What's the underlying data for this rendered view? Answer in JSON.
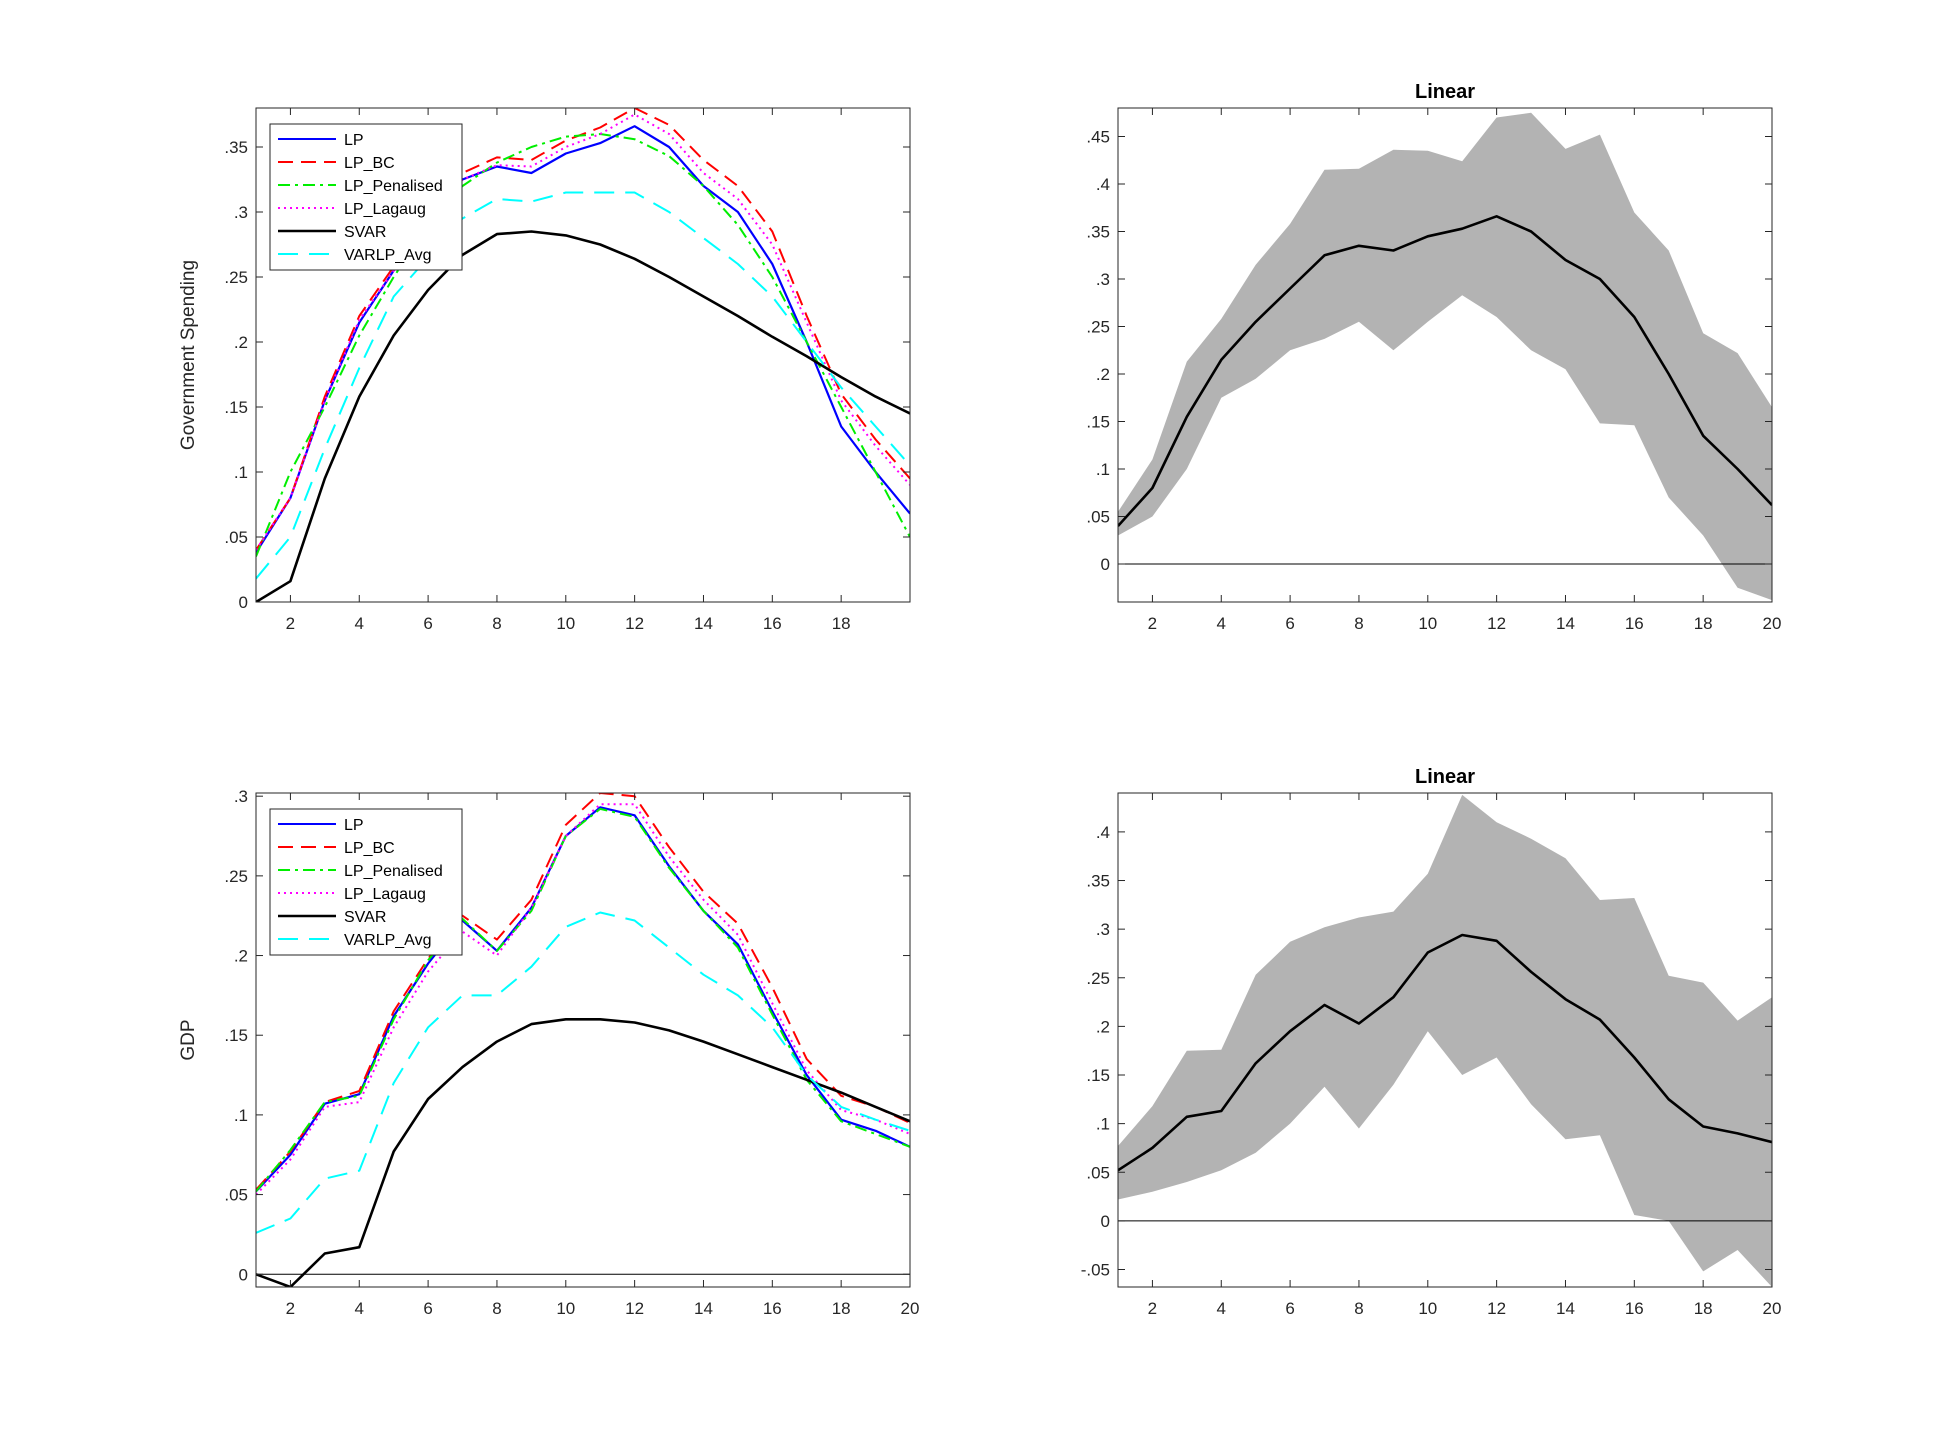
{
  "chart_data": [
    {
      "type": "line",
      "title": "",
      "xlabel": "",
      "ylabel": "Government Spending",
      "xlim": [
        1,
        20
      ],
      "ylim": [
        0,
        0.38
      ],
      "xticks": [
        2,
        4,
        6,
        8,
        10,
        12,
        14,
        16,
        18
      ],
      "yticks": [
        0,
        0.05,
        0.1,
        0.15,
        0.2,
        0.25,
        0.3,
        0.35
      ],
      "grid": false,
      "legend": "top-left",
      "x": [
        1,
        2,
        3,
        4,
        5,
        6,
        7,
        8,
        9,
        10,
        11,
        12,
        13,
        14,
        15,
        16,
        17,
        18,
        19,
        20
      ],
      "series": [
        {
          "name": "LP",
          "color": "#0000ff",
          "dash": "solid",
          "values": [
            0.038,
            0.08,
            0.155,
            0.215,
            0.255,
            0.29,
            0.325,
            0.335,
            0.33,
            0.345,
            0.353,
            0.366,
            0.35,
            0.32,
            0.3,
            0.26,
            0.2,
            0.135,
            0.1,
            0.068
          ]
        },
        {
          "name": "LP_BC",
          "color": "#ff0000",
          "dash": "dashed",
          "values": [
            0.04,
            0.08,
            0.158,
            0.22,
            0.258,
            0.297,
            0.33,
            0.342,
            0.34,
            0.355,
            0.365,
            0.38,
            0.367,
            0.34,
            0.32,
            0.285,
            0.22,
            0.16,
            0.125,
            0.095
          ]
        },
        {
          "name": "LP_Penalised",
          "color": "#00ee00",
          "dash": "dashdot",
          "values": [
            0.035,
            0.1,
            0.15,
            0.205,
            0.25,
            0.29,
            0.32,
            0.338,
            0.35,
            0.358,
            0.36,
            0.356,
            0.343,
            0.32,
            0.29,
            0.25,
            0.2,
            0.15,
            0.1,
            0.05
          ]
        },
        {
          "name": "LP_Lagaug",
          "color": "#ff00ff",
          "dash": "dotted",
          "values": [
            0.04,
            0.08,
            0.155,
            0.217,
            0.255,
            0.295,
            0.325,
            0.336,
            0.335,
            0.35,
            0.36,
            0.375,
            0.36,
            0.33,
            0.31,
            0.275,
            0.215,
            0.155,
            0.12,
            0.09
          ]
        },
        {
          "name": "SVAR",
          "color": "#000000",
          "dash": "solid",
          "values": [
            0,
            0.016,
            0.095,
            0.158,
            0.205,
            0.24,
            0.267,
            0.283,
            0.285,
            0.282,
            0.275,
            0.264,
            0.25,
            0.235,
            0.22,
            0.204,
            0.189,
            0.173,
            0.158,
            0.145
          ]
        },
        {
          "name": "VARLP_Avg",
          "color": "#00ffff",
          "dash": "longdash",
          "values": [
            0.018,
            0.05,
            0.118,
            0.18,
            0.235,
            0.265,
            0.295,
            0.31,
            0.308,
            0.315,
            0.315,
            0.315,
            0.3,
            0.28,
            0.26,
            0.235,
            0.2,
            0.165,
            0.135,
            0.105
          ]
        }
      ]
    },
    {
      "type": "area",
      "title": "Linear",
      "xlabel": "",
      "ylabel": "",
      "xlim": [
        1,
        20
      ],
      "ylim": [
        -0.04,
        0.48
      ],
      "xticks": [
        2,
        4,
        6,
        8,
        10,
        12,
        14,
        16,
        18,
        20
      ],
      "yticks": [
        0,
        0.05,
        0.1,
        0.15,
        0.2,
        0.25,
        0.3,
        0.35,
        0.4,
        0.45
      ],
      "grid": false,
      "zero_line": true,
      "band_color": "#b3b3b3",
      "line_color": "#000000",
      "x": [
        1,
        2,
        3,
        4,
        5,
        6,
        7,
        8,
        9,
        10,
        11,
        12,
        13,
        14,
        15,
        16,
        17,
        18,
        19,
        20
      ],
      "estimate": [
        0.04,
        0.08,
        0.155,
        0.215,
        0.255,
        0.29,
        0.325,
        0.335,
        0.33,
        0.345,
        0.353,
        0.366,
        0.35,
        0.32,
        0.3,
        0.26,
        0.2,
        0.135,
        0.1,
        0.062
      ],
      "upper": [
        0.055,
        0.11,
        0.213,
        0.258,
        0.315,
        0.358,
        0.415,
        0.416,
        0.436,
        0.435,
        0.424,
        0.47,
        0.475,
        0.437,
        0.452,
        0.37,
        0.33,
        0.243,
        0.222,
        0.165
      ],
      "lower": [
        0.03,
        0.05,
        0.1,
        0.175,
        0.195,
        0.225,
        0.237,
        0.255,
        0.225,
        0.255,
        0.283,
        0.26,
        0.225,
        0.205,
        0.148,
        0.146,
        0.07,
        0.03,
        -0.025,
        -0.038
      ]
    },
    {
      "type": "line",
      "title": "",
      "xlabel": "",
      "ylabel": "GDP",
      "xlim": [
        1,
        20
      ],
      "ylim": [
        -0.008,
        0.302
      ],
      "xticks": [
        2,
        4,
        6,
        8,
        10,
        12,
        14,
        16,
        18,
        20
      ],
      "yticks": [
        0,
        0.05,
        0.1,
        0.15,
        0.2,
        0.25,
        0.3
      ],
      "grid": false,
      "zero_line": true,
      "legend": "top-left",
      "x": [
        1,
        2,
        3,
        4,
        5,
        6,
        7,
        8,
        9,
        10,
        11,
        12,
        13,
        14,
        15,
        16,
        17,
        18,
        19,
        20
      ],
      "series": [
        {
          "name": "LP",
          "color": "#0000ff",
          "dash": "solid",
          "values": [
            0.052,
            0.075,
            0.107,
            0.113,
            0.162,
            0.195,
            0.222,
            0.203,
            0.23,
            0.275,
            0.293,
            0.288,
            0.256,
            0.228,
            0.207,
            0.165,
            0.125,
            0.097,
            0.09,
            0.08
          ]
        },
        {
          "name": "LP_BC",
          "color": "#ff0000",
          "dash": "dashed",
          "values": [
            0.053,
            0.077,
            0.108,
            0.115,
            0.165,
            0.198,
            0.225,
            0.21,
            0.235,
            0.282,
            0.302,
            0.3,
            0.268,
            0.24,
            0.22,
            0.18,
            0.135,
            0.112,
            0.105,
            0.095
          ]
        },
        {
          "name": "LP_Penalised",
          "color": "#00ee00",
          "dash": "dashdot",
          "values": [
            0.052,
            0.078,
            0.108,
            0.112,
            0.16,
            0.197,
            0.223,
            0.203,
            0.228,
            0.275,
            0.292,
            0.287,
            0.255,
            0.228,
            0.205,
            0.163,
            0.122,
            0.096,
            0.088,
            0.08
          ]
        },
        {
          "name": "LP_Lagaug",
          "color": "#ff00ff",
          "dash": "dotted",
          "values": [
            0.05,
            0.072,
            0.105,
            0.108,
            0.155,
            0.19,
            0.215,
            0.2,
            0.23,
            0.275,
            0.295,
            0.295,
            0.262,
            0.235,
            0.213,
            0.17,
            0.128,
            0.103,
            0.097,
            0.088
          ]
        },
        {
          "name": "SVAR",
          "color": "#000000",
          "dash": "solid",
          "values": [
            0,
            -0.008,
            0.013,
            0.017,
            0.077,
            0.11,
            0.13,
            0.146,
            0.157,
            0.16,
            0.16,
            0.158,
            0.153,
            0.146,
            0.138,
            0.13,
            0.122,
            0.114,
            0.105,
            0.096
          ]
        },
        {
          "name": "VARLP_Avg",
          "color": "#00ffff",
          "dash": "longdash",
          "values": [
            0.026,
            0.035,
            0.06,
            0.065,
            0.12,
            0.155,
            0.175,
            0.175,
            0.193,
            0.218,
            0.227,
            0.222,
            0.205,
            0.188,
            0.175,
            0.155,
            0.125,
            0.105,
            0.097,
            0.09
          ]
        }
      ]
    },
    {
      "type": "area",
      "title": "Linear",
      "xlabel": "",
      "ylabel": "",
      "xlim": [
        1,
        20
      ],
      "ylim": [
        -0.068,
        0.44
      ],
      "xticks": [
        2,
        4,
        6,
        8,
        10,
        12,
        14,
        16,
        18,
        20
      ],
      "yticks": [
        -0.05,
        0,
        0.05,
        0.1,
        0.15,
        0.2,
        0.25,
        0.3,
        0.35,
        0.4
      ],
      "grid": false,
      "zero_line": true,
      "band_color": "#b3b3b3",
      "line_color": "#000000",
      "x": [
        1,
        2,
        3,
        4,
        5,
        6,
        7,
        8,
        9,
        10,
        11,
        12,
        13,
        14,
        15,
        16,
        17,
        18,
        19,
        20
      ],
      "estimate": [
        0.052,
        0.075,
        0.107,
        0.113,
        0.162,
        0.195,
        0.222,
        0.203,
        0.23,
        0.276,
        0.294,
        0.288,
        0.256,
        0.228,
        0.207,
        0.168,
        0.125,
        0.097,
        0.09,
        0.081
      ],
      "upper": [
        0.077,
        0.118,
        0.175,
        0.176,
        0.253,
        0.287,
        0.302,
        0.312,
        0.318,
        0.357,
        0.438,
        0.41,
        0.393,
        0.373,
        0.33,
        0.332,
        0.252,
        0.245,
        0.206,
        0.23
      ],
      "lower": [
        0.022,
        0.03,
        0.04,
        0.052,
        0.07,
        0.1,
        0.138,
        0.095,
        0.14,
        0.195,
        0.15,
        0.168,
        0.12,
        0.084,
        0.088,
        0.006,
        0,
        -0.052,
        -0.03,
        -0.068
      ]
    }
  ]
}
